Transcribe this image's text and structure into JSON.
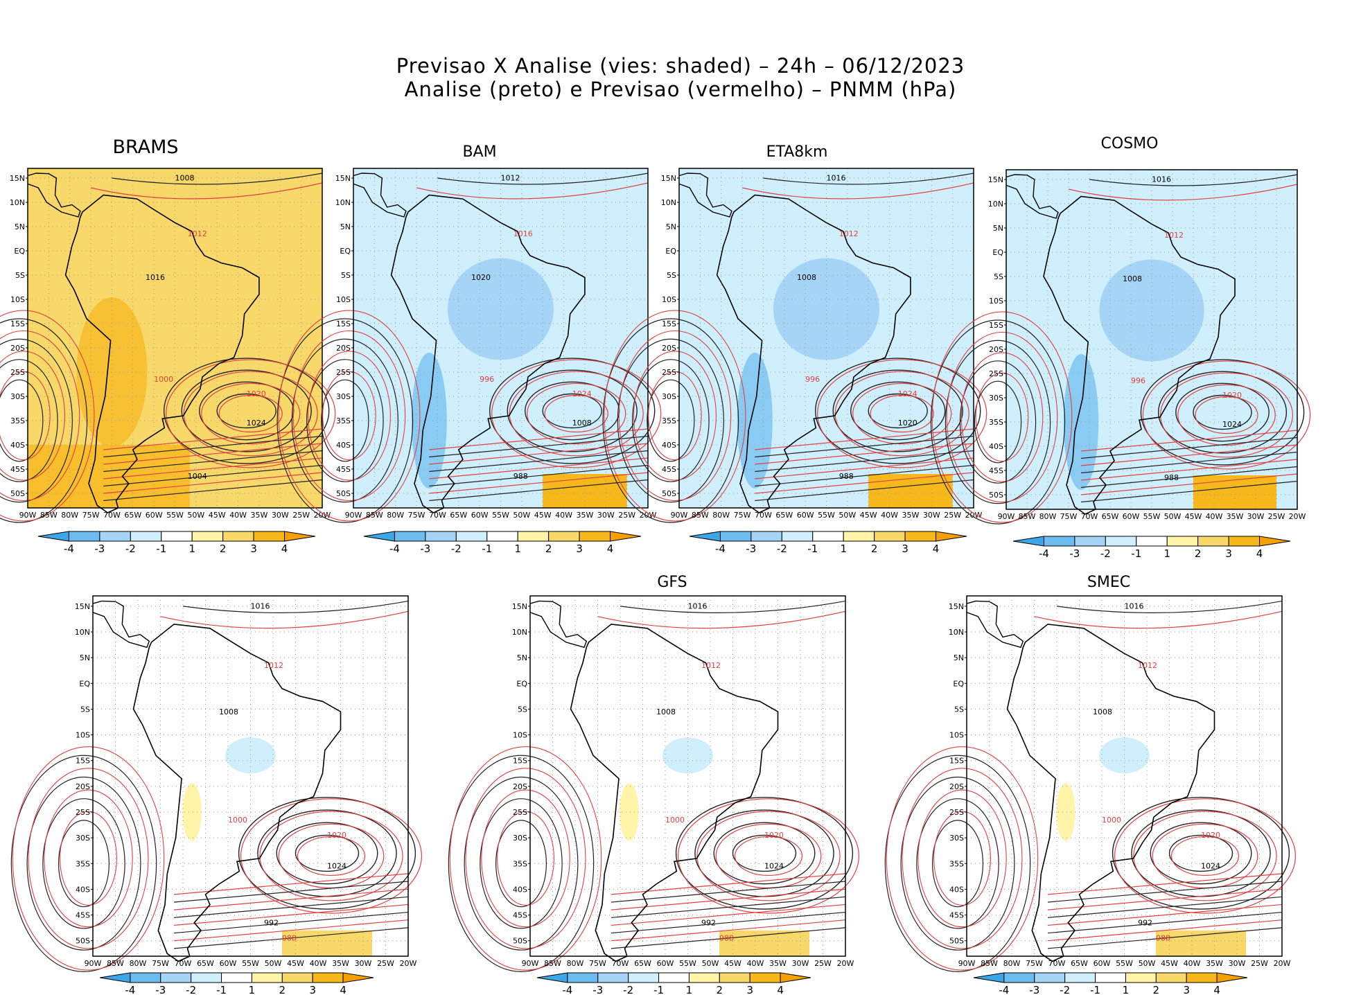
{
  "title_line1": "Previsao X Analise (vies: shaded) – 24h – 06/12/2023",
  "title_line2": "Analise (preto) e Previsao (vermelho) – PNMM (hPa)",
  "lat_labels": [
    "15N",
    "10N",
    "5N",
    "EQ",
    "5S",
    "10S",
    "15S",
    "20S",
    "25S",
    "30S",
    "35S",
    "40S",
    "45S",
    "50S"
  ],
  "lon_labels": [
    "90W",
    "85W",
    "80W",
    "75W",
    "70W",
    "65W",
    "60W",
    "55W",
    "50W",
    "45W",
    "40W",
    "35W",
    "30W",
    "25W",
    "20W"
  ],
  "colorbar": {
    "labels": [
      "-4",
      "-3",
      "-2",
      "-1",
      "1",
      "2",
      "3",
      "4"
    ],
    "colors": [
      "#3aa8e8",
      "#6cbcf0",
      "#a6d4f6",
      "#cfeffd",
      "#ffffff",
      "#fff4a8",
      "#f9d86a",
      "#f7b81c",
      "#f5a000"
    ]
  },
  "panels": [
    {
      "id": "brams",
      "title": "BRAMS",
      "bias": "warm",
      "isobars": [
        "1008",
        "1012",
        "1016",
        "1020",
        "1024",
        "1000",
        "1004"
      ]
    },
    {
      "id": "bam",
      "title": "BAM",
      "bias": "cool",
      "isobars": [
        "1012",
        "1016",
        "1020",
        "1024",
        "1008",
        "996",
        "988"
      ]
    },
    {
      "id": "eta8km",
      "title": "ETA8km",
      "bias": "cool",
      "isobars": [
        "1016",
        "1012",
        "1008",
        "1024",
        "1020",
        "996",
        "988"
      ]
    },
    {
      "id": "cosmo",
      "title": "COSMO",
      "bias": "cool",
      "isobars": [
        "1016",
        "1012",
        "1008",
        "1020",
        "1024",
        "996",
        "988"
      ]
    },
    {
      "id": "wrf",
      "title": "",
      "bias": "mixed",
      "isobars": [
        "1016",
        "1012",
        "1008",
        "1020",
        "1024",
        "1000",
        "992",
        "988"
      ]
    },
    {
      "id": "gfs",
      "title": "GFS",
      "bias": "neutral",
      "isobars": [
        "1016",
        "1012",
        "1008",
        "1020",
        "1024",
        "1000",
        "992",
        "988"
      ]
    },
    {
      "id": "smec",
      "title": "SMEC",
      "bias": "neutral",
      "isobars": [
        "1016",
        "1012",
        "1008",
        "1020",
        "1024",
        "1000",
        "992",
        "988"
      ]
    }
  ]
}
